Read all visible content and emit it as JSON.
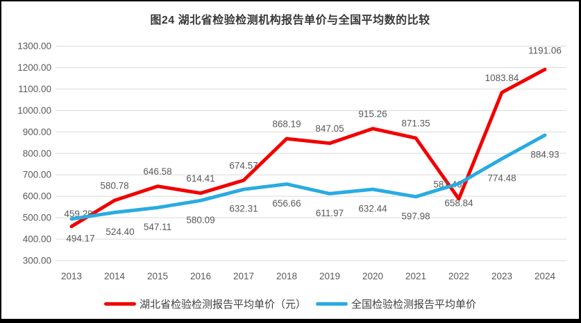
{
  "title": "图24 湖北省检验检测机构报告单价与全国平均数的比较",
  "chart_data": {
    "type": "line",
    "categories": [
      "2013",
      "2014",
      "2015",
      "2016",
      "2017",
      "2018",
      "2019",
      "2020",
      "2021",
      "2022",
      "2023",
      "2024"
    ],
    "series": [
      {
        "name": "湖北省检验检测报告平均单价（元）",
        "color": "#f20000",
        "label_position": "above",
        "values": [
          459.29,
          580.78,
          646.58,
          614.41,
          674.57,
          868.19,
          847.05,
          915.26,
          871.35,
          587.46,
          1083.84,
          1191.06
        ],
        "value_labels": [
          "459.29",
          "580.78",
          "646.58",
          "614.41",
          "674.57",
          "868.19",
          "847.05",
          "915.26",
          "871.35",
          "587.46",
          "1083.84",
          "1191.06"
        ]
      },
      {
        "name": "全国检验检测报告平均单价",
        "color": "#29abe2",
        "label_position": "below",
        "values": [
          494.17,
          524.4,
          547.11,
          580.09,
          632.31,
          656.66,
          611.97,
          632.44,
          597.98,
          658.84,
          774.48,
          884.93
        ],
        "value_labels": [
          "494.17",
          "524.40",
          "547.11",
          "580.09",
          "632.31",
          "656.66",
          "611.97",
          "632.44",
          "597.98",
          "658.84",
          "774.48",
          "884.93"
        ]
      }
    ],
    "ylim": [
      300,
      1300
    ],
    "ytick_step": 100,
    "yticks": [
      "300.00",
      "400.00",
      "500.00",
      "600.00",
      "700.00",
      "800.00",
      "900.00",
      "1000.00",
      "1100.00",
      "1200.00",
      "1300.00"
    ],
    "grid": true,
    "grid_color": "#d9d9d9",
    "axis_label_color": "#595959",
    "legend_position": "bottom",
    "xlabel": "",
    "ylabel": ""
  }
}
